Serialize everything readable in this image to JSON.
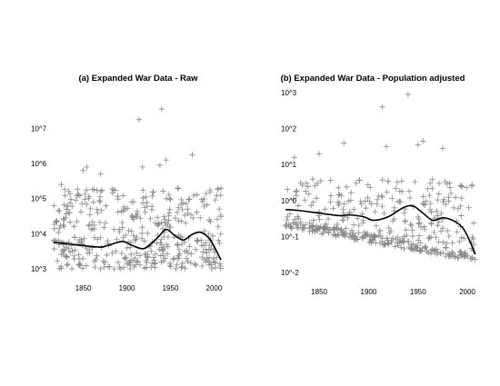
{
  "chart_data": [
    {
      "type": "scatter",
      "title": "(a) Expanded War Data - Raw",
      "xlabel": "",
      "ylabel": "",
      "xlim": [
        1815,
        2010
      ],
      "ylim_log10": [
        3,
        7.5
      ],
      "y_scale": "log",
      "x_ticks": [
        1850,
        1900,
        1950,
        2000
      ],
      "y_ticks": [
        {
          "value_log10": 3,
          "label": "10^3"
        },
        {
          "value_log10": 4,
          "label": "10^4"
        },
        {
          "value_log10": 5,
          "label": "10^5"
        },
        {
          "value_log10": 6,
          "label": "10^6"
        },
        {
          "value_log10": 7,
          "label": "10^7"
        }
      ],
      "grid": false,
      "marker": "+",
      "point_color": "#888888",
      "line_color": "#000000",
      "highlight_points": [
        {
          "year": 1914,
          "log10": 7.25
        },
        {
          "year": 1940,
          "log10": 7.55
        },
        {
          "year": 1918,
          "log10": 5.9
        },
        {
          "year": 1975,
          "log10": 6.25
        },
        {
          "year": 1938,
          "log10": 5.95
        },
        {
          "year": 1945,
          "log10": 6.1
        },
        {
          "year": 1850,
          "log10": 5.8
        },
        {
          "year": 1854,
          "log10": 5.9
        },
        {
          "year": 1870,
          "log10": 5.7
        },
        {
          "year": 1825,
          "log10": 5.4
        }
      ],
      "background_points": {
        "count": 430,
        "x_range": [
          1816,
          2008
        ],
        "log10_range": [
          3.0,
          5.3
        ]
      },
      "trend": {
        "x": [
          1816,
          1830,
          1850,
          1870,
          1880,
          1895,
          1905,
          1920,
          1935,
          1945,
          1955,
          1965,
          1975,
          1985,
          1995,
          2002,
          2008
        ],
        "log10": [
          3.75,
          3.72,
          3.66,
          3.62,
          3.68,
          3.78,
          3.68,
          3.58,
          3.88,
          4.12,
          3.95,
          3.82,
          3.98,
          4.04,
          3.85,
          3.55,
          3.25
        ]
      }
    },
    {
      "type": "scatter",
      "title": "(b) Expanded War Data - Population adjusted",
      "xlabel": "",
      "ylabel": "",
      "xlim": [
        1815,
        2010
      ],
      "ylim_log10": [
        -2,
        3.1
      ],
      "y_scale": "log",
      "x_ticks": [
        1850,
        1900,
        1950,
        2000
      ],
      "y_ticks": [
        {
          "value_log10": -2,
          "label": "10^-2"
        },
        {
          "value_log10": -1,
          "label": "10^-1"
        },
        {
          "value_log10": 0,
          "label": "10^0"
        },
        {
          "value_log10": 1,
          "label": "10^1"
        },
        {
          "value_log10": 2,
          "label": "10^2"
        },
        {
          "value_log10": 3,
          "label": "10^3"
        }
      ],
      "grid": false,
      "marker": "+",
      "point_color": "#888888",
      "line_color": "#000000",
      "highlight_points": [
        {
          "year": 1914,
          "log10": 2.6
        },
        {
          "year": 1940,
          "log10": 2.95
        },
        {
          "year": 1875,
          "log10": 1.6
        },
        {
          "year": 1918,
          "log10": 1.5
        },
        {
          "year": 1975,
          "log10": 1.45
        },
        {
          "year": 1950,
          "log10": 1.55
        },
        {
          "year": 1955,
          "log10": 1.65
        },
        {
          "year": 1850,
          "log10": 1.3
        },
        {
          "year": 1825,
          "log10": 1.2
        }
      ],
      "background_points": {
        "count": 430,
        "x_range": [
          1816,
          2008
        ],
        "log10_range": [
          -1.9,
          0.6
        ]
      },
      "trend": {
        "x": [
          1816,
          1830,
          1850,
          1870,
          1880,
          1895,
          1905,
          1920,
          1935,
          1945,
          1955,
          1965,
          1975,
          1985,
          1995,
          2002,
          2008
        ],
        "log10": [
          -0.25,
          -0.28,
          -0.35,
          -0.42,
          -0.4,
          -0.45,
          -0.55,
          -0.45,
          -0.2,
          -0.15,
          -0.35,
          -0.55,
          -0.48,
          -0.55,
          -0.75,
          -1.1,
          -1.5
        ]
      }
    }
  ]
}
